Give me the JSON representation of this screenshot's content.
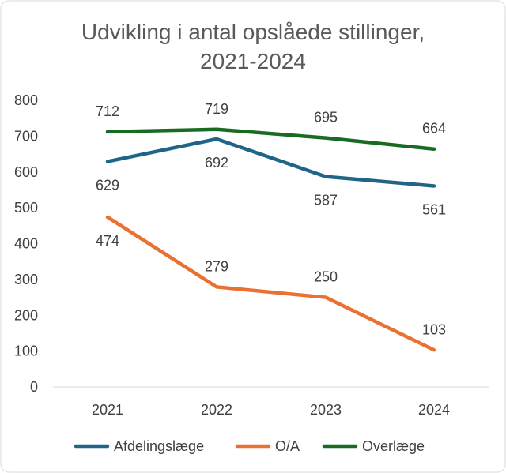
{
  "chart_data": {
    "type": "line",
    "title_lines": [
      "Udvikling i antal opslåede stillinger,",
      "2021-2024"
    ],
    "categories": [
      "2021",
      "2022",
      "2023",
      "2024"
    ],
    "xlabel": "",
    "ylabel": "",
    "ylim": [
      0,
      800
    ],
    "yticks": [
      "0",
      "100",
      "200",
      "300",
      "400",
      "500",
      "600",
      "700",
      "800"
    ],
    "grid": false,
    "legend_position": "bottom",
    "series": [
      {
        "name": "Afdelingslæge",
        "color": "#1f6587",
        "values": [
          629,
          692,
          587,
          561
        ],
        "label_pos": [
          "below",
          "below",
          "below",
          "below"
        ]
      },
      {
        "name": "O/A",
        "color": "#e97132",
        "values": [
          474,
          279,
          250,
          103
        ],
        "label_pos": [
          "below",
          "above",
          "above",
          "above"
        ]
      },
      {
        "name": "Overlæge",
        "color": "#196b24",
        "values": [
          712,
          719,
          695,
          664
        ],
        "label_pos": [
          "above",
          "above",
          "above",
          "above"
        ]
      }
    ]
  }
}
